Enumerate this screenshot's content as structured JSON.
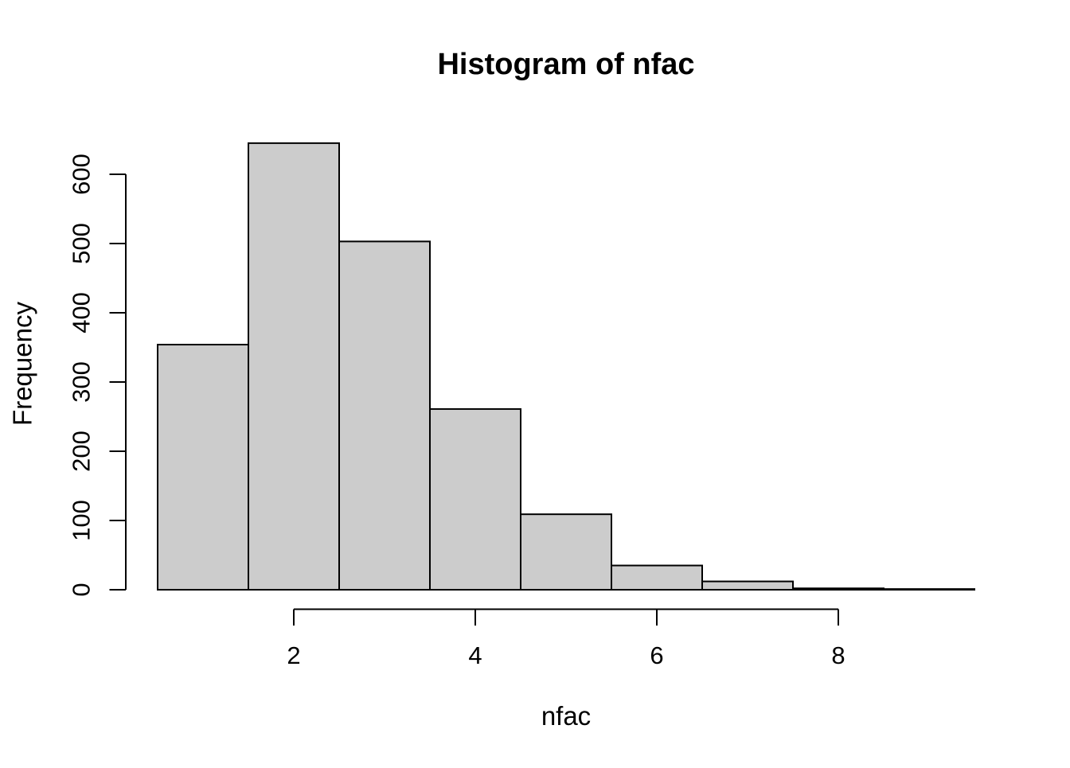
{
  "chart_data": {
    "type": "bar",
    "subtype": "histogram",
    "title": "Histogram of nfac",
    "xlabel": "nfac",
    "ylabel": "Frequency",
    "bin_edges": [
      0.5,
      1.5,
      2.5,
      3.5,
      4.5,
      5.5,
      6.5,
      7.5,
      8.5,
      9.5
    ],
    "counts": [
      354,
      645,
      503,
      261,
      109,
      35,
      12,
      2,
      1
    ],
    "x_ticks": [
      2,
      4,
      6,
      8
    ],
    "x_tick_labels": [
      "2",
      "4",
      "6",
      "8"
    ],
    "y_ticks": [
      0,
      100,
      200,
      300,
      400,
      500,
      600
    ],
    "y_tick_labels": [
      "0",
      "100",
      "200",
      "300",
      "400",
      "500",
      "600"
    ],
    "xlim": [
      0.5,
      9.5
    ],
    "ylim": [
      0,
      600
    ],
    "grid": false,
    "legend": null,
    "colors": {
      "background": "#FFFFFF",
      "bar_fill": "#CCCCCC",
      "bar_stroke": "#000000",
      "axis": "#000000",
      "text": "#000000"
    }
  }
}
